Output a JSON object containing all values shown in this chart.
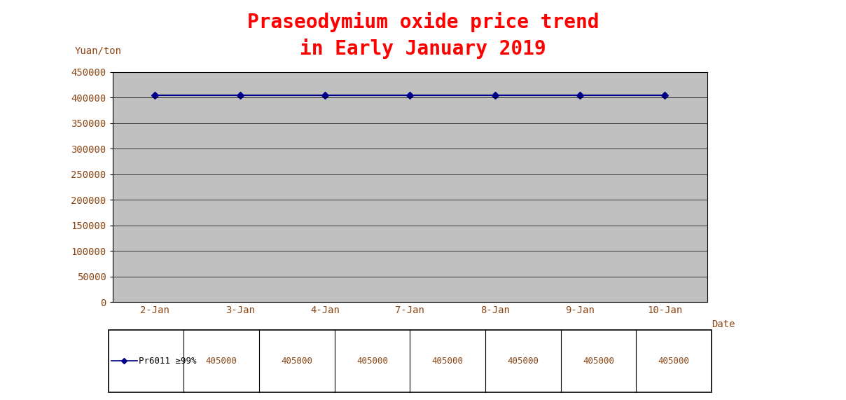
{
  "title_line1": "Praseodymium oxide price trend",
  "title_line2": "in Early January 2019",
  "title_color": "#FF0000",
  "title_fontsize": 20,
  "ylabel": "Yuan/ton",
  "xlabel": "Date",
  "ylabel_color": "#8B4513",
  "xlabel_color": "#8B4513",
  "tick_label_color": "#8B4513",
  "dates": [
    "2-Jan",
    "3-Jan",
    "4-Jan",
    "7-Jan",
    "8-Jan",
    "9-Jan",
    "10-Jan"
  ],
  "values": [
    405000,
    405000,
    405000,
    405000,
    405000,
    405000,
    405000
  ],
  "ylim": [
    0,
    450000
  ],
  "yticks": [
    0,
    50000,
    100000,
    150000,
    200000,
    250000,
    300000,
    350000,
    400000,
    450000
  ],
  "ytick_labels": [
    "0",
    "50000",
    "100000",
    "150000",
    "200000",
    "250000",
    "300000",
    "350000",
    "400000",
    "450000"
  ],
  "line_color": "#00008B",
  "marker": "D",
  "marker_color": "#00008B",
  "marker_size": 5,
  "plot_bg_color": "#C0C0C0",
  "fig_bg_color": "#FFFFFF",
  "grid_color": "#000000",
  "table_label": "Pr6011 ≥99%",
  "table_values": [
    "405000",
    "405000",
    "405000",
    "405000",
    "405000",
    "405000",
    "405000"
  ],
  "border_color": "#000000",
  "font_family": "monospace",
  "fig_width": 12.08,
  "fig_height": 5.71,
  "dpi": 100
}
